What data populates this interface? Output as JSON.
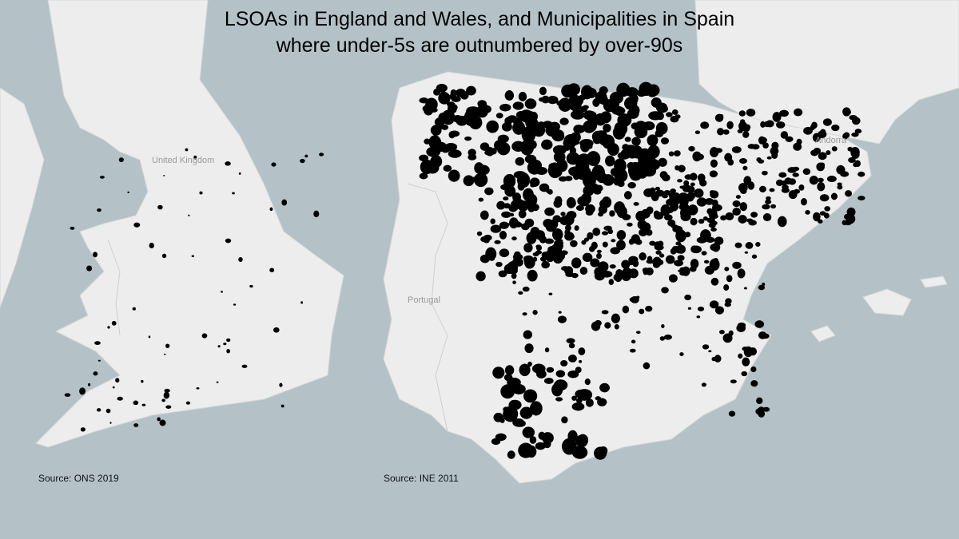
{
  "title": {
    "line1": "LSOAs in England and Wales, and Municipalities in Spain",
    "line2": "where under-5s are outnumbered by over-90s"
  },
  "sources": {
    "left": "Source: ONS 2019",
    "right": "Source: INE 2011"
  },
  "basemap_labels": {
    "uk": "United Kingdom",
    "portugal": "Portugal",
    "andorra": "Andorra"
  },
  "colors": {
    "sea": "#b4c2c8",
    "land": "#ededed",
    "highlighted_area": "#000000"
  }
}
